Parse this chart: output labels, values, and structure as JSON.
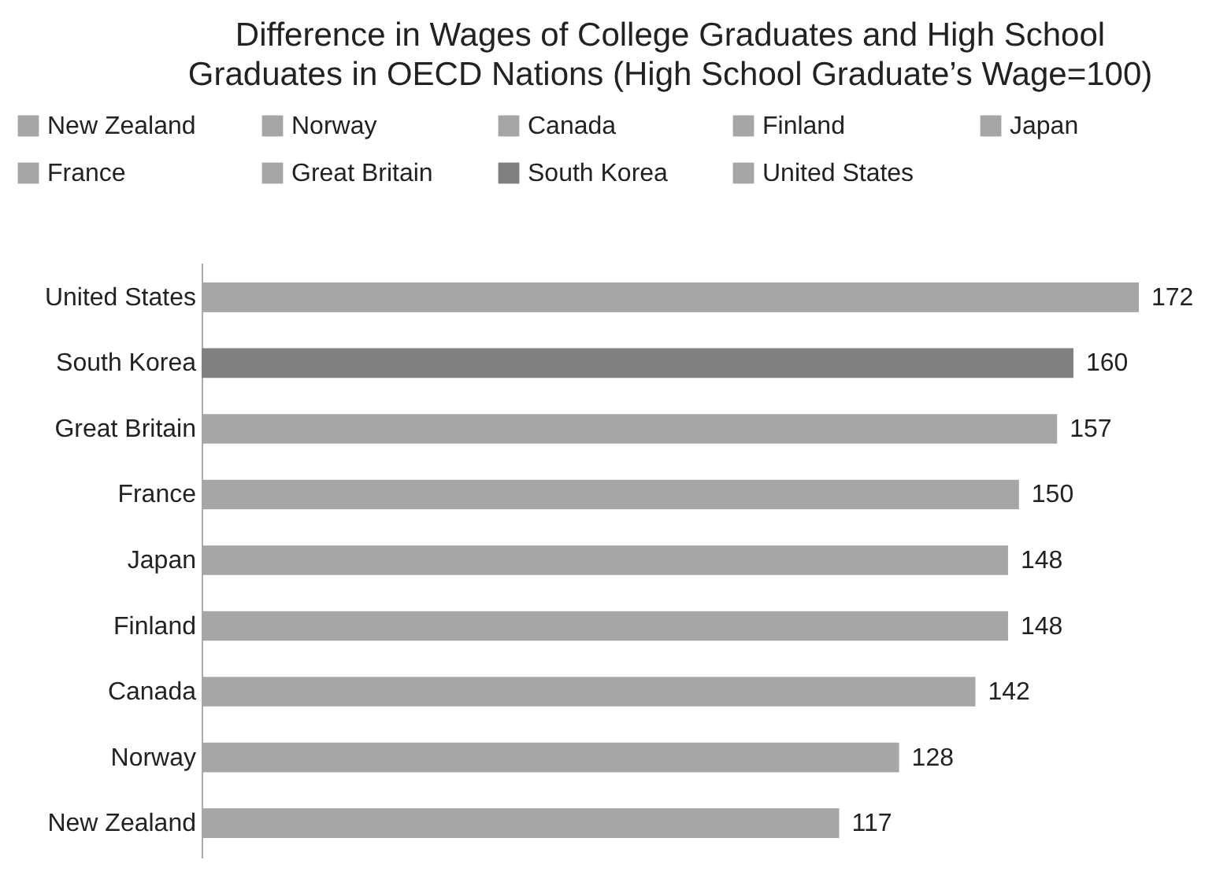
{
  "chart_data": {
    "type": "bar",
    "orientation": "horizontal",
    "stacked": true,
    "title": "Difference in Wages of College Graduates and High School\nGraduates in OECD Nations (High School Graduate’s Wage=100)",
    "categories": [
      "United States",
      "South Korea",
      "Great Britain",
      "France",
      "Japan",
      "Finland",
      "Canada",
      "Norway",
      "New Zealand"
    ],
    "series": [
      {
        "name": "New Zealand",
        "color": "#a6a6a6",
        "values": [
          null,
          null,
          null,
          null,
          null,
          null,
          null,
          null,
          117
        ]
      },
      {
        "name": "Norway",
        "color": "#a6a6a6",
        "values": [
          null,
          null,
          null,
          null,
          null,
          null,
          null,
          128,
          null
        ]
      },
      {
        "name": "Canada",
        "color": "#a6a6a6",
        "values": [
          null,
          null,
          null,
          null,
          null,
          null,
          142,
          null,
          null
        ]
      },
      {
        "name": "Finland",
        "color": "#a6a6a6",
        "values": [
          null,
          null,
          null,
          null,
          null,
          148,
          null,
          null,
          null
        ]
      },
      {
        "name": "Japan",
        "color": "#a6a6a6",
        "values": [
          null,
          null,
          null,
          null,
          148,
          null,
          null,
          null,
          null
        ]
      },
      {
        "name": "France",
        "color": "#a6a6a6",
        "values": [
          null,
          null,
          null,
          150,
          null,
          null,
          null,
          null,
          null
        ]
      },
      {
        "name": "Great Britain",
        "color": "#a6a6a6",
        "values": [
          null,
          null,
          157,
          null,
          null,
          null,
          null,
          null,
          null
        ]
      },
      {
        "name": "South Korea",
        "color": "#808080",
        "values": [
          null,
          160,
          null,
          null,
          null,
          null,
          null,
          null,
          null
        ]
      },
      {
        "name": "United States",
        "color": "#a6a6a6",
        "values": [
          172,
          null,
          null,
          null,
          null,
          null,
          null,
          null,
          null
        ]
      }
    ],
    "data_labels": true,
    "legend": "top",
    "grid": false
  }
}
